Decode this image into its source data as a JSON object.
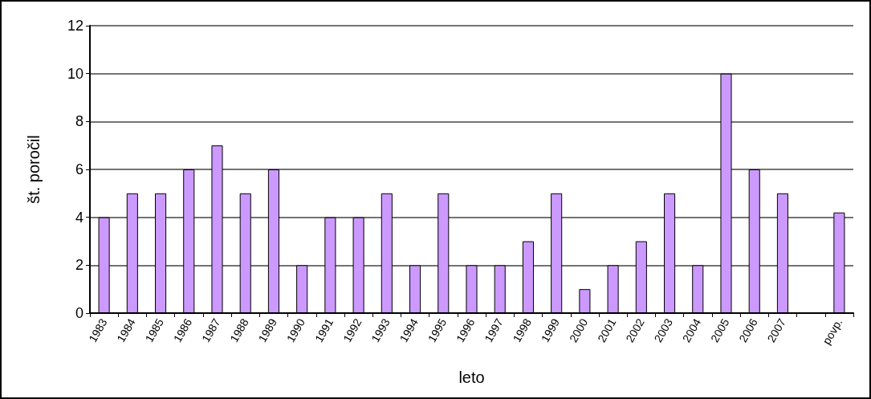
{
  "chart_data": {
    "type": "bar",
    "xlabel": "leto",
    "ylabel": "št. poročil",
    "categories": [
      "1983",
      "1984",
      "1985",
      "1986",
      "1987",
      "1988",
      "1989",
      "1990",
      "1991",
      "1992",
      "1993",
      "1994",
      "1995",
      "1996",
      "1997",
      "1998",
      "1999",
      "2000",
      "2001",
      "2002",
      "2003",
      "2004",
      "2005",
      "2006",
      "2007",
      null,
      "povp."
    ],
    "values": [
      4,
      5,
      5,
      6,
      7,
      5,
      6,
      2,
      4,
      4,
      5,
      2,
      5,
      2,
      2,
      3,
      5,
      1,
      2,
      3,
      5,
      2,
      10,
      6,
      5,
      null,
      4.2
    ],
    "color": "#cc99ff",
    "ylim": [
      0,
      12
    ],
    "yticks": [
      0,
      2,
      4,
      6,
      8,
      10,
      12
    ],
    "grid": "y"
  }
}
